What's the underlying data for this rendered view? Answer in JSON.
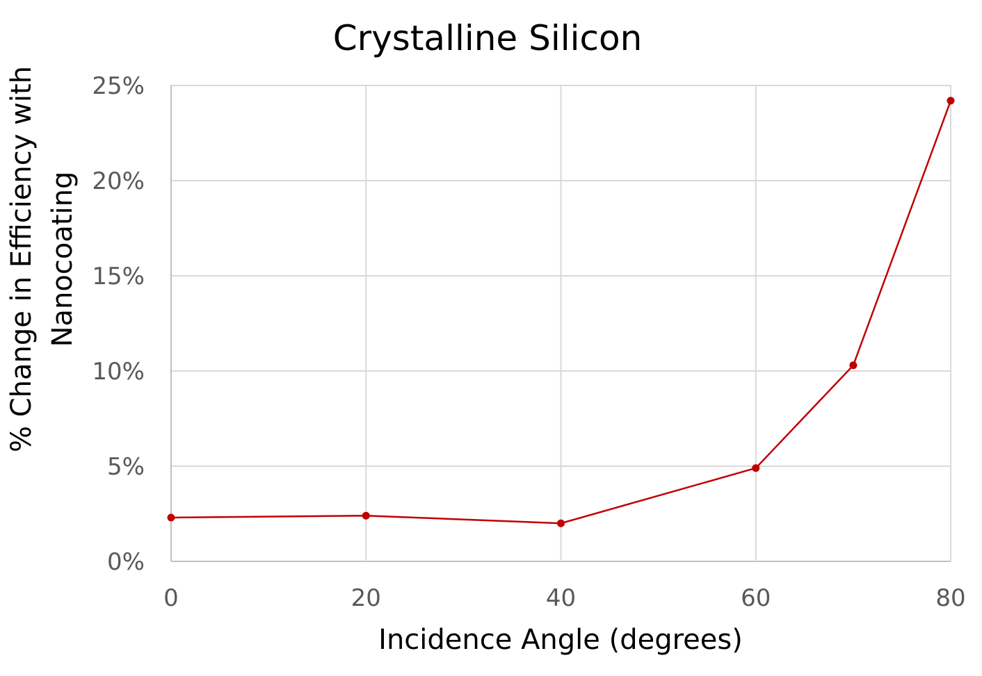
{
  "chart_data": {
    "type": "line",
    "title": "Crystalline Silicon",
    "xlabel": "Incidence Angle (degrees)",
    "ylabel_line1": "% Change in Efficiency with",
    "ylabel_line2": "Nanocoating",
    "xlim": [
      0,
      80
    ],
    "ylim": [
      0,
      25
    ],
    "x_ticks": [
      0,
      20,
      40,
      60,
      80
    ],
    "y_ticks": [
      0,
      5,
      10,
      15,
      20,
      25
    ],
    "y_tick_labels": [
      "0%",
      "5%",
      "10%",
      "15%",
      "20%",
      "25%"
    ],
    "grid": true,
    "legend": "none",
    "series": [
      {
        "color": "#c00000",
        "points": [
          {
            "x": 0,
            "y": 2.3
          },
          {
            "x": 20,
            "y": 2.4
          },
          {
            "x": 40,
            "y": 2.0
          },
          {
            "x": 60,
            "y": 4.9
          },
          {
            "x": 70,
            "y": 10.3
          },
          {
            "x": 80,
            "y": 24.2
          }
        ]
      }
    ]
  }
}
